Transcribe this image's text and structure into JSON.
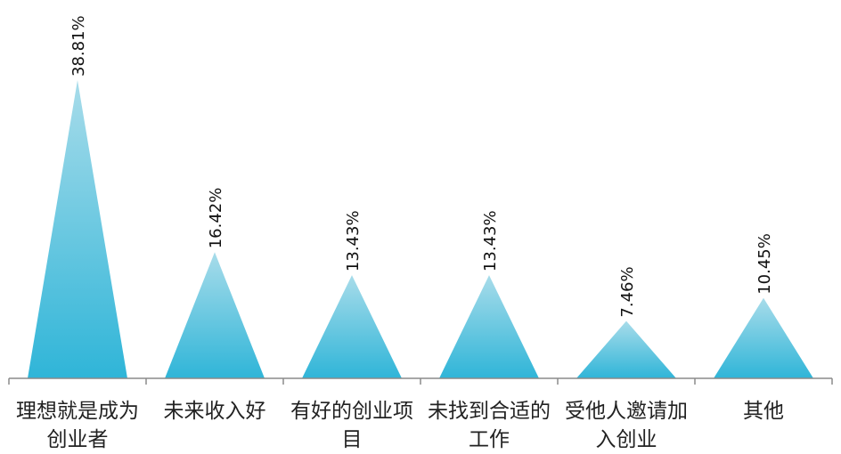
{
  "chart_data": {
    "type": "bar",
    "shape": "triangle",
    "categories": [
      "理想就是成为\n创业者",
      "未来收入好",
      "有好的创业项\n目",
      "未找到合适的\n工作",
      "受他人邀请加\n入创业",
      "其他"
    ],
    "values": [
      38.81,
      16.42,
      13.43,
      13.43,
      7.46,
      10.45
    ],
    "data_labels": [
      "38.81%",
      "16.42%",
      "13.43%",
      "13.43%",
      "7.46%",
      "10.45%"
    ],
    "ylim": [
      0,
      40
    ],
    "grid": false,
    "legend": "none",
    "colors": {
      "top": "#a8dcea",
      "bottom": "#2fb5d8",
      "axis": "#8a8a8a"
    }
  }
}
